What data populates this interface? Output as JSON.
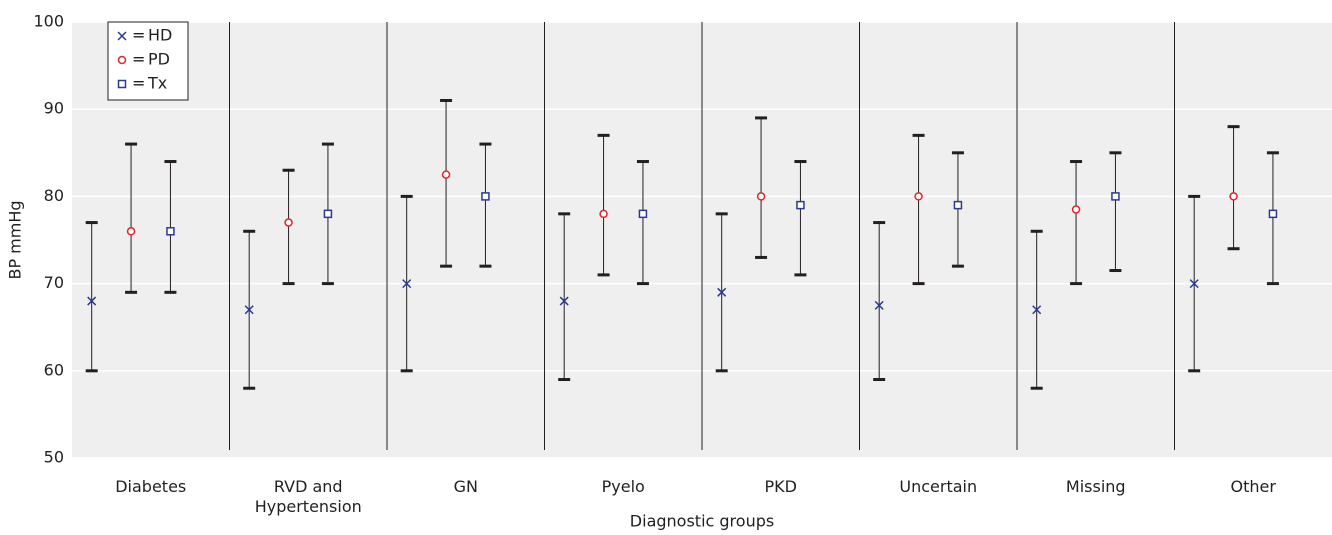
{
  "chart_data": {
    "type": "errorbar",
    "x_label": "Diagnostic groups",
    "y_label": "BP mmHg",
    "categories": [
      "Diabetes",
      "RVD and Hypertension",
      "GN",
      "Pyelo",
      "PKD",
      "Uncertain",
      "Missing",
      "Other"
    ],
    "ylim": [
      50,
      100
    ],
    "yticks": [
      50,
      60,
      70,
      80,
      90,
      100
    ],
    "grid": true,
    "legend_position": "upper-left",
    "legend_separator": "=",
    "series": [
      {
        "name": "HD",
        "color": "#2b3990",
        "marker": "x",
        "values": [
          68,
          67,
          70,
          68,
          69,
          67.5,
          67,
          70
        ],
        "low": [
          60,
          58,
          60,
          59,
          60,
          59,
          58,
          60
        ],
        "high": [
          77,
          76,
          80,
          78,
          78,
          77,
          76,
          80
        ]
      },
      {
        "name": "PD",
        "color": "#e2232a",
        "marker": "circle",
        "values": [
          76,
          77,
          82.5,
          78,
          80,
          80,
          78.5,
          80
        ],
        "low": [
          69,
          70,
          72,
          71,
          73,
          70,
          70,
          74
        ],
        "high": [
          86,
          83,
          91,
          87,
          89,
          87,
          84,
          88
        ]
      },
      {
        "name": "Tx",
        "color": "#2b3990",
        "marker": "square",
        "values": [
          76,
          78,
          80,
          78,
          79,
          79,
          80,
          78
        ],
        "low": [
          69,
          70,
          72,
          70,
          71,
          72,
          71.5,
          70
        ],
        "high": [
          84,
          86,
          86,
          84,
          84,
          85,
          85,
          85
        ]
      }
    ]
  }
}
